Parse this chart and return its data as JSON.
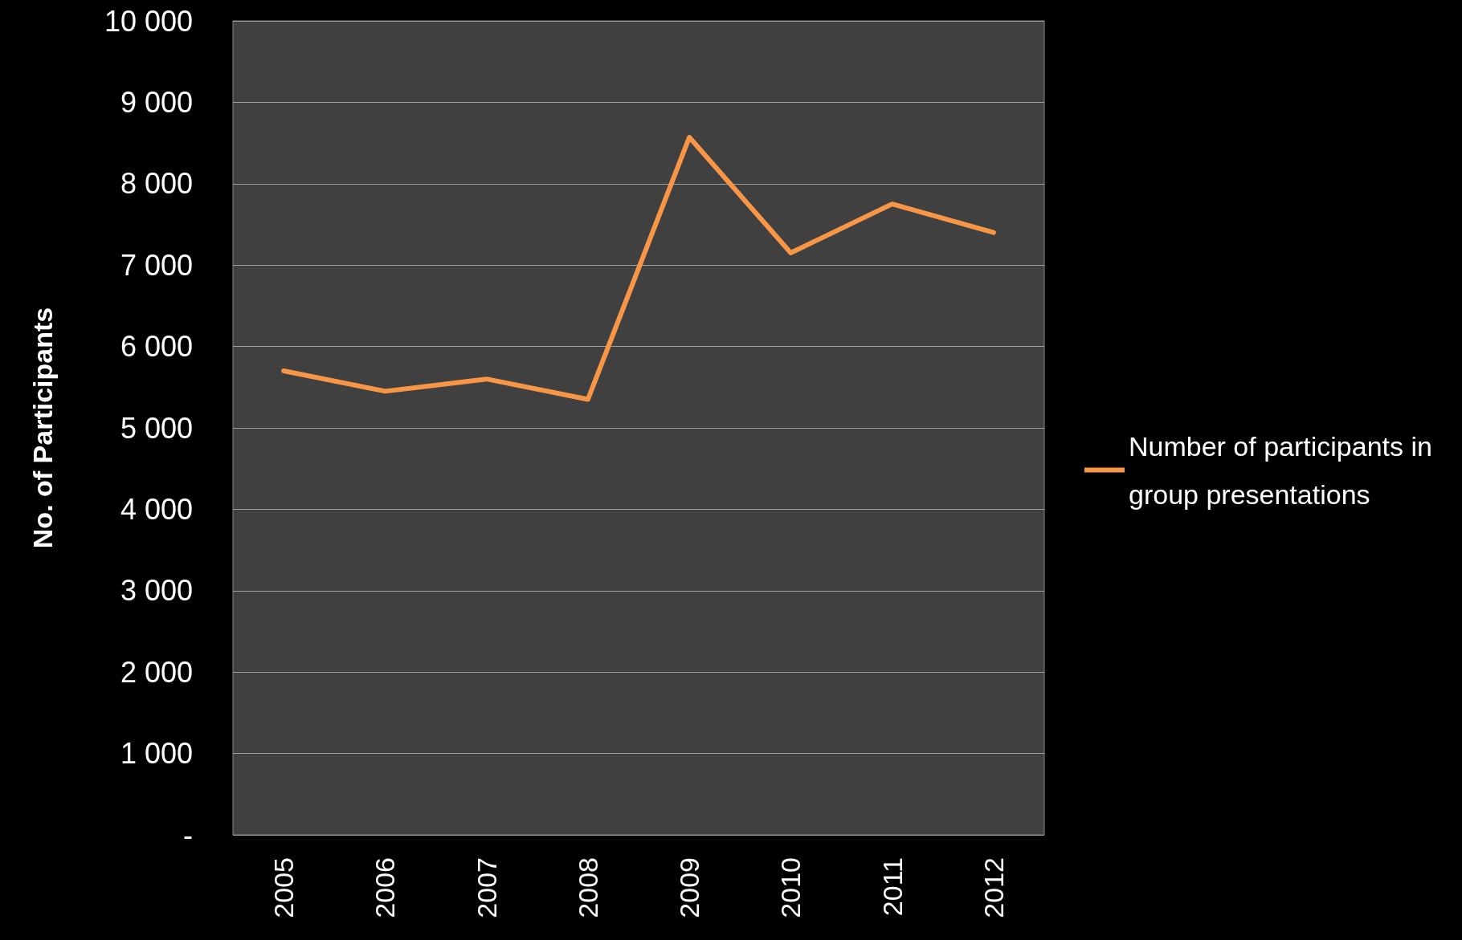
{
  "chart_data": {
    "type": "line",
    "ylabel": "No. of Participants",
    "categories": [
      "2005",
      "2006",
      "2007",
      "2008",
      "2009",
      "2010",
      "2011",
      "2012"
    ],
    "series": [
      {
        "name": "Number of participants in group presentations",
        "color": "#f79646",
        "values": [
          5700,
          5450,
          5600,
          5350,
          8570,
          7150,
          7750,
          7400
        ]
      }
    ],
    "ylim": [
      0,
      10000
    ],
    "yticks": [
      {
        "value": 0,
        "label": "-"
      },
      {
        "value": 1000,
        "label": "1 000"
      },
      {
        "value": 2000,
        "label": "2 000"
      },
      {
        "value": 3000,
        "label": "3 000"
      },
      {
        "value": 4000,
        "label": "4 000"
      },
      {
        "value": 5000,
        "label": "5 000"
      },
      {
        "value": 6000,
        "label": "6 000"
      },
      {
        "value": 7000,
        "label": "7 000"
      },
      {
        "value": 8000,
        "label": "8 000"
      },
      {
        "value": 9000,
        "label": "9 000"
      },
      {
        "value": 10000,
        "label": "10 000"
      }
    ],
    "grid": "y",
    "legend": "right",
    "marker": "none",
    "line_style": "solid"
  }
}
